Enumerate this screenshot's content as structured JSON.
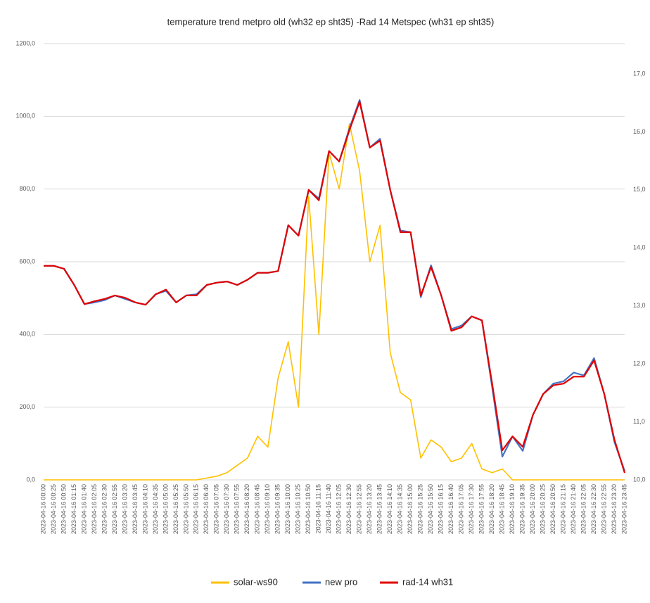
{
  "chart_data": {
    "type": "line",
    "title": "temperature trend metpro old (wh32 ep sht35) -Rad 14 Metspec (wh31 ep sht35)",
    "categories": [
      "2023-04-16 00:00",
      "2023-04-16 00:25",
      "2023-04-16 00:50",
      "2023-04-16 01:15",
      "2023-04-16 01:40",
      "2023-04-16 02:05",
      "2023-04-16 02:30",
      "2023-04-16 02:55",
      "2023-04-16 03:20",
      "2023-04-16 03:45",
      "2023-04-16 04:10",
      "2023-04-16 04:35",
      "2023-04-16 05:00",
      "2023-04-16 05:25",
      "2023-04-16 05:50",
      "2023-04-16 06:15",
      "2023-04-16 06:40",
      "2023-04-16 07:05",
      "2023-04-16 07:30",
      "2023-04-16 07:55",
      "2023-04-16 08:20",
      "2023-04-16 08:45",
      "2023-04-16 09:10",
      "2023-04-16 09:35",
      "2023-04-16 10:00",
      "2023-04-16 10:25",
      "2023-04-16 10:50",
      "2023-04-16 11:15",
      "2023-04-16 11:40",
      "2023-04-16 12:05",
      "2023-04-16 12:30",
      "2023-04-16 12:55",
      "2023-04-16 13:20",
      "2023-04-16 13:45",
      "2023-04-16 14:10",
      "2023-04-16 14:35",
      "2023-04-16 15:00",
      "2023-04-16 15:25",
      "2023-04-16 15:50",
      "2023-04-16 16:15",
      "2023-04-16 16:40",
      "2023-04-16 17:05",
      "2023-04-16 17:30",
      "2023-04-16 17:55",
      "2023-04-16 18:20",
      "2023-04-16 18:45",
      "2023-04-16 19:10",
      "2023-04-16 19:35",
      "2023-04-16 20:00",
      "2023-04-16 20:25",
      "2023-04-16 20:50",
      "2023-04-16 21:15",
      "2023-04-16 21:40",
      "2023-04-16 22:05",
      "2023-04-16 22:30",
      "2023-04-16 22:55",
      "2023-04-16 23:20",
      "2023-04-16 23:45"
    ],
    "series": [
      {
        "name": "solar-ws90",
        "color": "#ffc000",
        "axis": "y",
        "values": [
          0,
          0,
          0,
          0,
          0,
          0,
          0,
          0,
          0,
          0,
          0,
          0,
          0,
          0,
          0,
          0,
          5,
          10,
          20,
          40,
          60,
          120,
          90,
          280,
          380,
          200,
          780,
          400,
          900,
          800,
          980,
          850,
          600,
          700,
          350,
          240,
          220,
          60,
          110,
          90,
          50,
          60,
          100,
          30,
          20,
          30,
          0,
          0,
          0,
          0,
          0,
          0,
          0,
          0,
          0,
          0,
          0,
          0
        ]
      },
      {
        "name": "new pro",
        "color": "#4472c4",
        "axis": "y2",
        "values": [
          13.69,
          13.69,
          13.64,
          13.36,
          13.03,
          13.06,
          13.1,
          13.18,
          13.12,
          13.06,
          13.02,
          13.2,
          13.26,
          13.06,
          13.18,
          13.2,
          13.36,
          13.4,
          13.42,
          13.36,
          13.45,
          13.57,
          13.57,
          13.6,
          14.39,
          14.21,
          15.0,
          14.85,
          15.67,
          15.49,
          16.06,
          16.55,
          15.73,
          15.88,
          15.0,
          14.3,
          14.27,
          13.15,
          13.7,
          13.18,
          12.6,
          12.66,
          12.82,
          12.75,
          11.6,
          10.4,
          10.75,
          10.5,
          11.12,
          11.48,
          11.66,
          11.7,
          11.85,
          11.8,
          12.1,
          11.48,
          10.65,
          10.15
        ]
      },
      {
        "name": "rad-14 wh31",
        "color": "#e00000",
        "axis": "y2",
        "values": [
          13.69,
          13.69,
          13.64,
          13.36,
          13.03,
          13.08,
          13.12,
          13.18,
          13.14,
          13.06,
          13.02,
          13.2,
          13.28,
          13.06,
          13.18,
          13.18,
          13.36,
          13.4,
          13.42,
          13.36,
          13.45,
          13.57,
          13.57,
          13.6,
          14.39,
          14.21,
          15.0,
          14.82,
          15.67,
          15.49,
          16.03,
          16.52,
          15.73,
          15.85,
          15.0,
          14.27,
          14.27,
          13.18,
          13.67,
          13.18,
          12.57,
          12.63,
          12.82,
          12.75,
          11.66,
          10.51,
          10.75,
          10.57,
          11.12,
          11.48,
          11.63,
          11.66,
          11.78,
          11.78,
          12.06,
          11.48,
          10.69,
          10.12
        ]
      }
    ],
    "ylim": [
      0,
      1200
    ],
    "yticks": [
      {
        "value": 0,
        "label": "0,0"
      },
      {
        "value": 200,
        "label": "200,0"
      },
      {
        "value": 400,
        "label": "400,0"
      },
      {
        "value": 600,
        "label": "600,0"
      },
      {
        "value": 800,
        "label": "800,0"
      },
      {
        "value": 1000,
        "label": "1000,0"
      },
      {
        "value": 1200,
        "label": "1200,0"
      }
    ],
    "y2lim": [
      10,
      17
    ],
    "y2ticks": [
      {
        "value": 10,
        "label": "10,0"
      },
      {
        "value": 11,
        "label": "11,0"
      },
      {
        "value": 12,
        "label": "12,0"
      },
      {
        "value": 13,
        "label": "13,0"
      },
      {
        "value": 14,
        "label": "14,0"
      },
      {
        "value": 15,
        "label": "15,0"
      },
      {
        "value": 16,
        "label": "16,0"
      },
      {
        "value": 17,
        "label": "17,0"
      }
    ],
    "grid": true,
    "legend": "bottom"
  }
}
